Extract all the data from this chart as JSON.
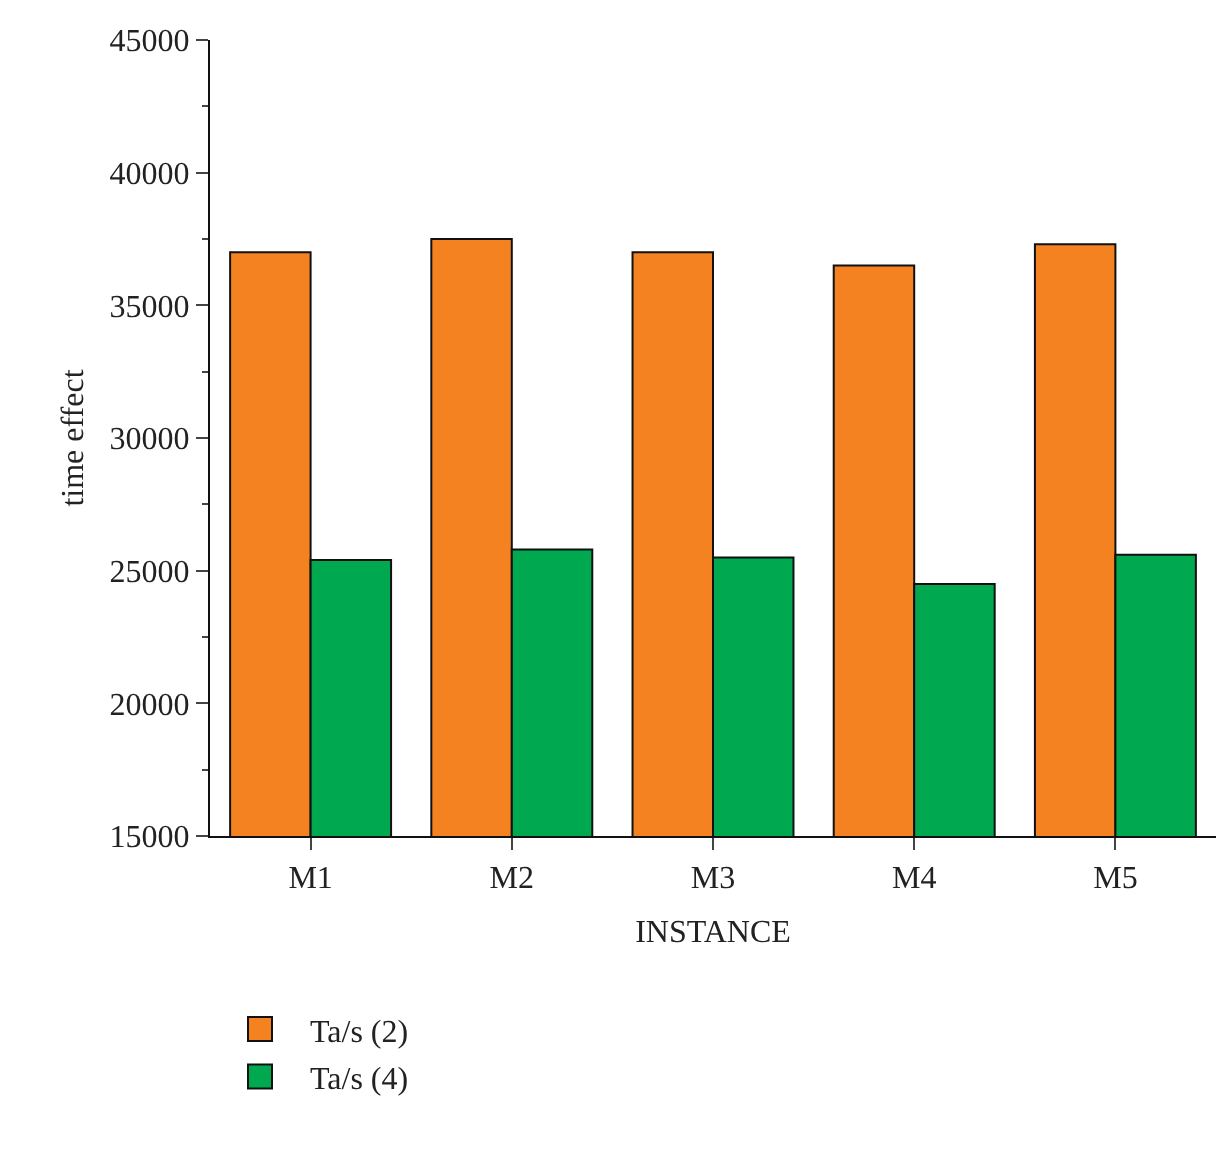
{
  "chart_data": {
    "type": "bar",
    "xlabel": "INSTANCE",
    "ylabel": "time effect",
    "categories": [
      "M1",
      "M2",
      "M3",
      "M4",
      "M5"
    ],
    "series": [
      {
        "name": "Ta/s (2)",
        "color": "#f58220",
        "values": [
          37000,
          37500,
          37000,
          36500,
          37300
        ]
      },
      {
        "name": "Ta/s (4)",
        "color": "#00a94f",
        "values": [
          25400,
          25800,
          25500,
          24500,
          25600
        ]
      }
    ],
    "ylim": [
      15000,
      45000
    ],
    "yticks": [
      15000,
      20000,
      25000,
      30000,
      35000,
      40000,
      45000
    ],
    "grid": false,
    "legend": "bottom left"
  }
}
